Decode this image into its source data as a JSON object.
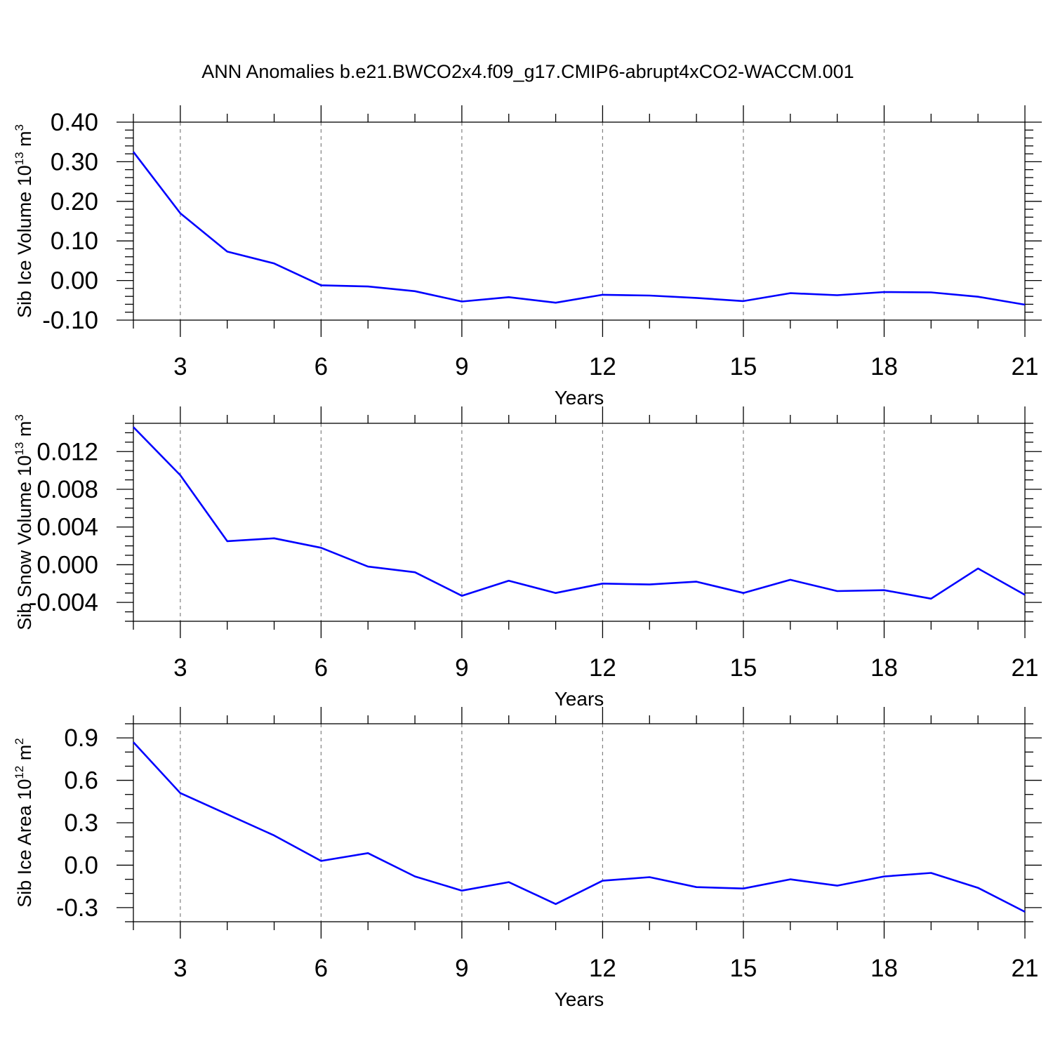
{
  "title": "ANN Anomalies b.e21.BWCO2x4.f09_g17.CMIP6-abrupt4xCO2-WACCM.001",
  "colors": {
    "line": "#0000ff",
    "grid": "#808080",
    "axis": "#000000"
  },
  "chart_data": [
    {
      "type": "line",
      "ylabel": {
        "text": "Sib Ice Volume 10",
        "exp": "13",
        "unit": " m",
        "unit_exp": "3"
      },
      "xlabel": "Years",
      "xlim": [
        2,
        21
      ],
      "ylim": [
        -0.1,
        0.4
      ],
      "xticks": [
        3,
        6,
        9,
        12,
        15,
        18,
        21
      ],
      "xtick_labels": [
        "3",
        "6",
        "9",
        "12",
        "15",
        "18",
        "21"
      ],
      "yticks": [
        -0.1,
        0.0,
        0.1,
        0.2,
        0.3,
        0.4
      ],
      "ytick_labels": [
        "-0.10",
        "0.00",
        "0.10",
        "0.20",
        "0.30",
        "0.40"
      ],
      "y_minor_step": 0.02,
      "grid": "vertical dashed at major x ticks",
      "x": [
        2,
        3,
        4,
        5,
        6,
        7,
        8,
        9,
        10,
        11,
        12,
        13,
        14,
        15,
        16,
        17,
        18,
        19,
        20,
        21
      ],
      "values": [
        0.325,
        0.17,
        0.073,
        0.043,
        -0.012,
        -0.015,
        -0.027,
        -0.053,
        -0.042,
        -0.056,
        -0.036,
        -0.038,
        -0.044,
        -0.052,
        -0.032,
        -0.037,
        -0.029,
        -0.03,
        -0.041,
        -0.061
      ]
    },
    {
      "type": "line",
      "ylabel": {
        "text": "Sib Snow Volume 10",
        "exp": "13",
        "unit": " m",
        "unit_exp": "3"
      },
      "xlabel": "Years",
      "xlim": [
        2,
        21
      ],
      "ylim": [
        -0.006,
        0.015
      ],
      "xticks": [
        3,
        6,
        9,
        12,
        15,
        18,
        21
      ],
      "xtick_labels": [
        "3",
        "6",
        "9",
        "12",
        "15",
        "18",
        "21"
      ],
      "yticks": [
        -0.004,
        0.0,
        0.004,
        0.008,
        0.012
      ],
      "ytick_labels": [
        "-0.004",
        "0.000",
        "0.004",
        "0.008",
        "0.012"
      ],
      "y_minor_step": 0.001,
      "grid": "vertical dashed at major x ticks",
      "x": [
        2,
        3,
        4,
        5,
        6,
        7,
        8,
        9,
        10,
        11,
        12,
        13,
        14,
        15,
        16,
        17,
        18,
        19,
        20,
        21
      ],
      "values": [
        0.0146,
        0.0095,
        0.0025,
        0.0028,
        0.0018,
        -0.0002,
        -0.0008,
        -0.0033,
        -0.0017,
        -0.003,
        -0.002,
        -0.0021,
        -0.0018,
        -0.003,
        -0.0016,
        -0.0028,
        -0.0027,
        -0.0036,
        -0.0004,
        -0.0032
      ]
    },
    {
      "type": "line",
      "ylabel": {
        "text": "Sib Ice Area 10",
        "exp": "12",
        "unit": " m",
        "unit_exp": "2"
      },
      "xlabel": "Years",
      "xlim": [
        2,
        21
      ],
      "ylim": [
        -0.4,
        1.0
      ],
      "xticks": [
        3,
        6,
        9,
        12,
        15,
        18,
        21
      ],
      "xtick_labels": [
        "3",
        "6",
        "9",
        "12",
        "15",
        "18",
        "21"
      ],
      "yticks": [
        -0.3,
        0.0,
        0.3,
        0.6,
        0.9
      ],
      "ytick_labels": [
        "-0.3",
        "0.0",
        "0.3",
        "0.6",
        "0.9"
      ],
      "y_minor_step": 0.1,
      "grid": "vertical dashed at major x ticks",
      "x": [
        2,
        3,
        4,
        5,
        6,
        7,
        8,
        9,
        10,
        11,
        12,
        13,
        14,
        15,
        16,
        17,
        18,
        19,
        20,
        21
      ],
      "values": [
        0.87,
        0.51,
        0.36,
        0.21,
        0.03,
        0.085,
        -0.08,
        -0.18,
        -0.12,
        -0.275,
        -0.11,
        -0.085,
        -0.155,
        -0.165,
        -0.1,
        -0.145,
        -0.08,
        -0.055,
        -0.16,
        -0.33
      ]
    }
  ]
}
